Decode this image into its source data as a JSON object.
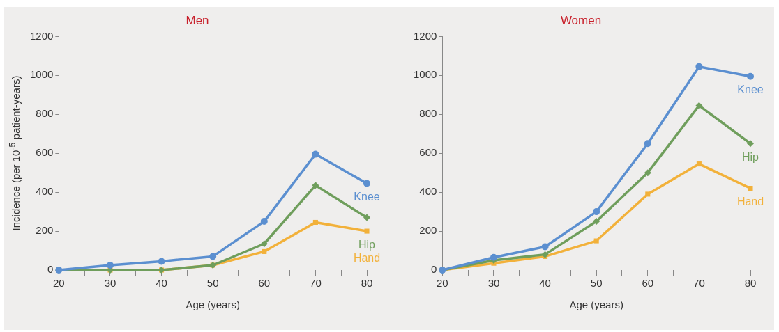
{
  "chart_data": [
    {
      "type": "line",
      "title": "Men",
      "xlabel": "Age (years)",
      "ylabel": "Incidence (per 10$^{-5}$ patient-years)",
      "x": [
        20,
        30,
        40,
        50,
        60,
        70,
        80
      ],
      "series": [
        {
          "name": "Knee",
          "color": "#5b8fd0",
          "marker": "circle",
          "values": [
            0,
            25,
            45,
            70,
            250,
            595,
            445
          ]
        },
        {
          "name": "Hip",
          "color": "#6f9e5c",
          "marker": "diamond",
          "values": [
            0,
            0,
            0,
            25,
            135,
            435,
            270
          ]
        },
        {
          "name": "Hand",
          "color": "#f2b13a",
          "marker": "square",
          "values": [
            0,
            0,
            0,
            25,
            95,
            245,
            200
          ]
        }
      ],
      "xlim": [
        20,
        80
      ],
      "xticks": [
        20,
        {
          "value": 25,
          "label": null
        },
        30,
        {
          "value": 35,
          "label": null
        },
        40,
        {
          "value": 45,
          "label": null
        },
        50,
        {
          "value": 55,
          "label": null
        },
        60,
        {
          "value": 65,
          "label": null
        },
        70,
        {
          "value": 75,
          "label": null
        },
        80
      ],
      "ylim": [
        0,
        1200
      ],
      "yticks": [
        0,
        200,
        400,
        600,
        800,
        1000,
        1200
      ],
      "grid": false,
      "legend": false
    },
    {
      "type": "line",
      "title": "Women",
      "xlabel": "Age (years)",
      "x": [
        20,
        30,
        40,
        50,
        60,
        70,
        80
      ],
      "series": [
        {
          "name": "Knee",
          "color": "#5b8fd0",
          "marker": "circle",
          "values": [
            0,
            65,
            120,
            300,
            650,
            1045,
            995
          ]
        },
        {
          "name": "Hip",
          "color": "#6f9e5c",
          "marker": "diamond",
          "values": [
            0,
            50,
            80,
            250,
            500,
            845,
            650
          ]
        },
        {
          "name": "Hand",
          "color": "#f2b13a",
          "marker": "square",
          "values": [
            0,
            35,
            70,
            150,
            390,
            545,
            420
          ]
        }
      ],
      "xlim": [
        20,
        80
      ],
      "xticks": [
        20,
        {
          "value": 25,
          "label": null
        },
        30,
        {
          "value": 35,
          "label": null
        },
        40,
        {
          "value": 45,
          "label": null
        },
        50,
        {
          "value": 55,
          "label": null
        },
        60,
        {
          "value": 65,
          "label": null
        },
        70,
        {
          "value": 75,
          "label": null
        },
        80
      ],
      "ylim": [
        0,
        1200
      ],
      "yticks": [
        0,
        200,
        400,
        600,
        800,
        1000,
        1200
      ],
      "grid": false,
      "legend": false
    }
  ]
}
